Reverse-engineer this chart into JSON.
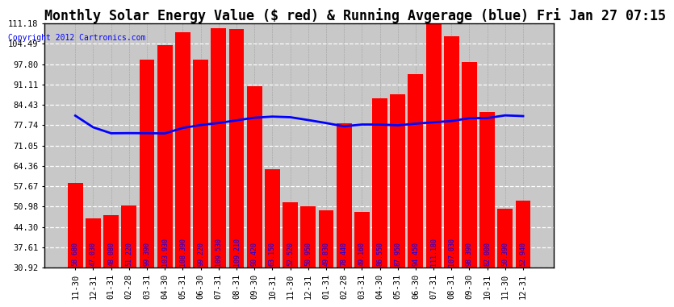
{
  "title": "Monthly Solar Energy Value ($ red) & Running Avgerage (blue) Fri Jan 27 07:15",
  "copyright": "Copyright 2012 Cartronics.com",
  "categories": [
    "11-30",
    "12-31",
    "01-31",
    "02-28",
    "03-31",
    "04-30",
    "05-31",
    "06-30",
    "07-31",
    "08-31",
    "09-30",
    "10-31",
    "11-30",
    "12-31",
    "01-31",
    "02-28",
    "03-31",
    "04-30",
    "05-31",
    "06-30",
    "07-31",
    "08-31",
    "09-30",
    "10-31",
    "11-30",
    "12-31"
  ],
  "bar_values": [
    58.68,
    47.03,
    48.08,
    51.22,
    99.39,
    103.93,
    108.39,
    99.22,
    109.53,
    109.21,
    90.42,
    63.15,
    52.52,
    50.95,
    49.83,
    78.44,
    49.16,
    86.55,
    87.95,
    94.45,
    111.18,
    107.03,
    98.39,
    82.0,
    50.39,
    52.94
  ],
  "running_avg": [
    80.86,
    77.03,
    75.07,
    75.12,
    75.09,
    75.03,
    76.83,
    77.78,
    78.44,
    79.32,
    80.19,
    80.55,
    80.35,
    79.42,
    78.44,
    77.35,
    77.95,
    77.95,
    77.69,
    78.23,
    78.69,
    79.1,
    80.03,
    80.08,
    80.95,
    80.72
  ],
  "bar_color": "#ff0000",
  "line_color": "#0000ff",
  "bg_color": "#ffffff",
  "plot_bg": "#c8c8c8",
  "yticks": [
    30.92,
    37.61,
    44.3,
    50.98,
    57.67,
    64.36,
    71.05,
    77.74,
    84.43,
    91.11,
    97.8,
    104.49,
    111.18
  ],
  "ymin": 30.92,
  "ymax": 111.18,
  "title_fontsize": 12,
  "value_fontsize": 6.0,
  "tick_fontsize": 7.5
}
